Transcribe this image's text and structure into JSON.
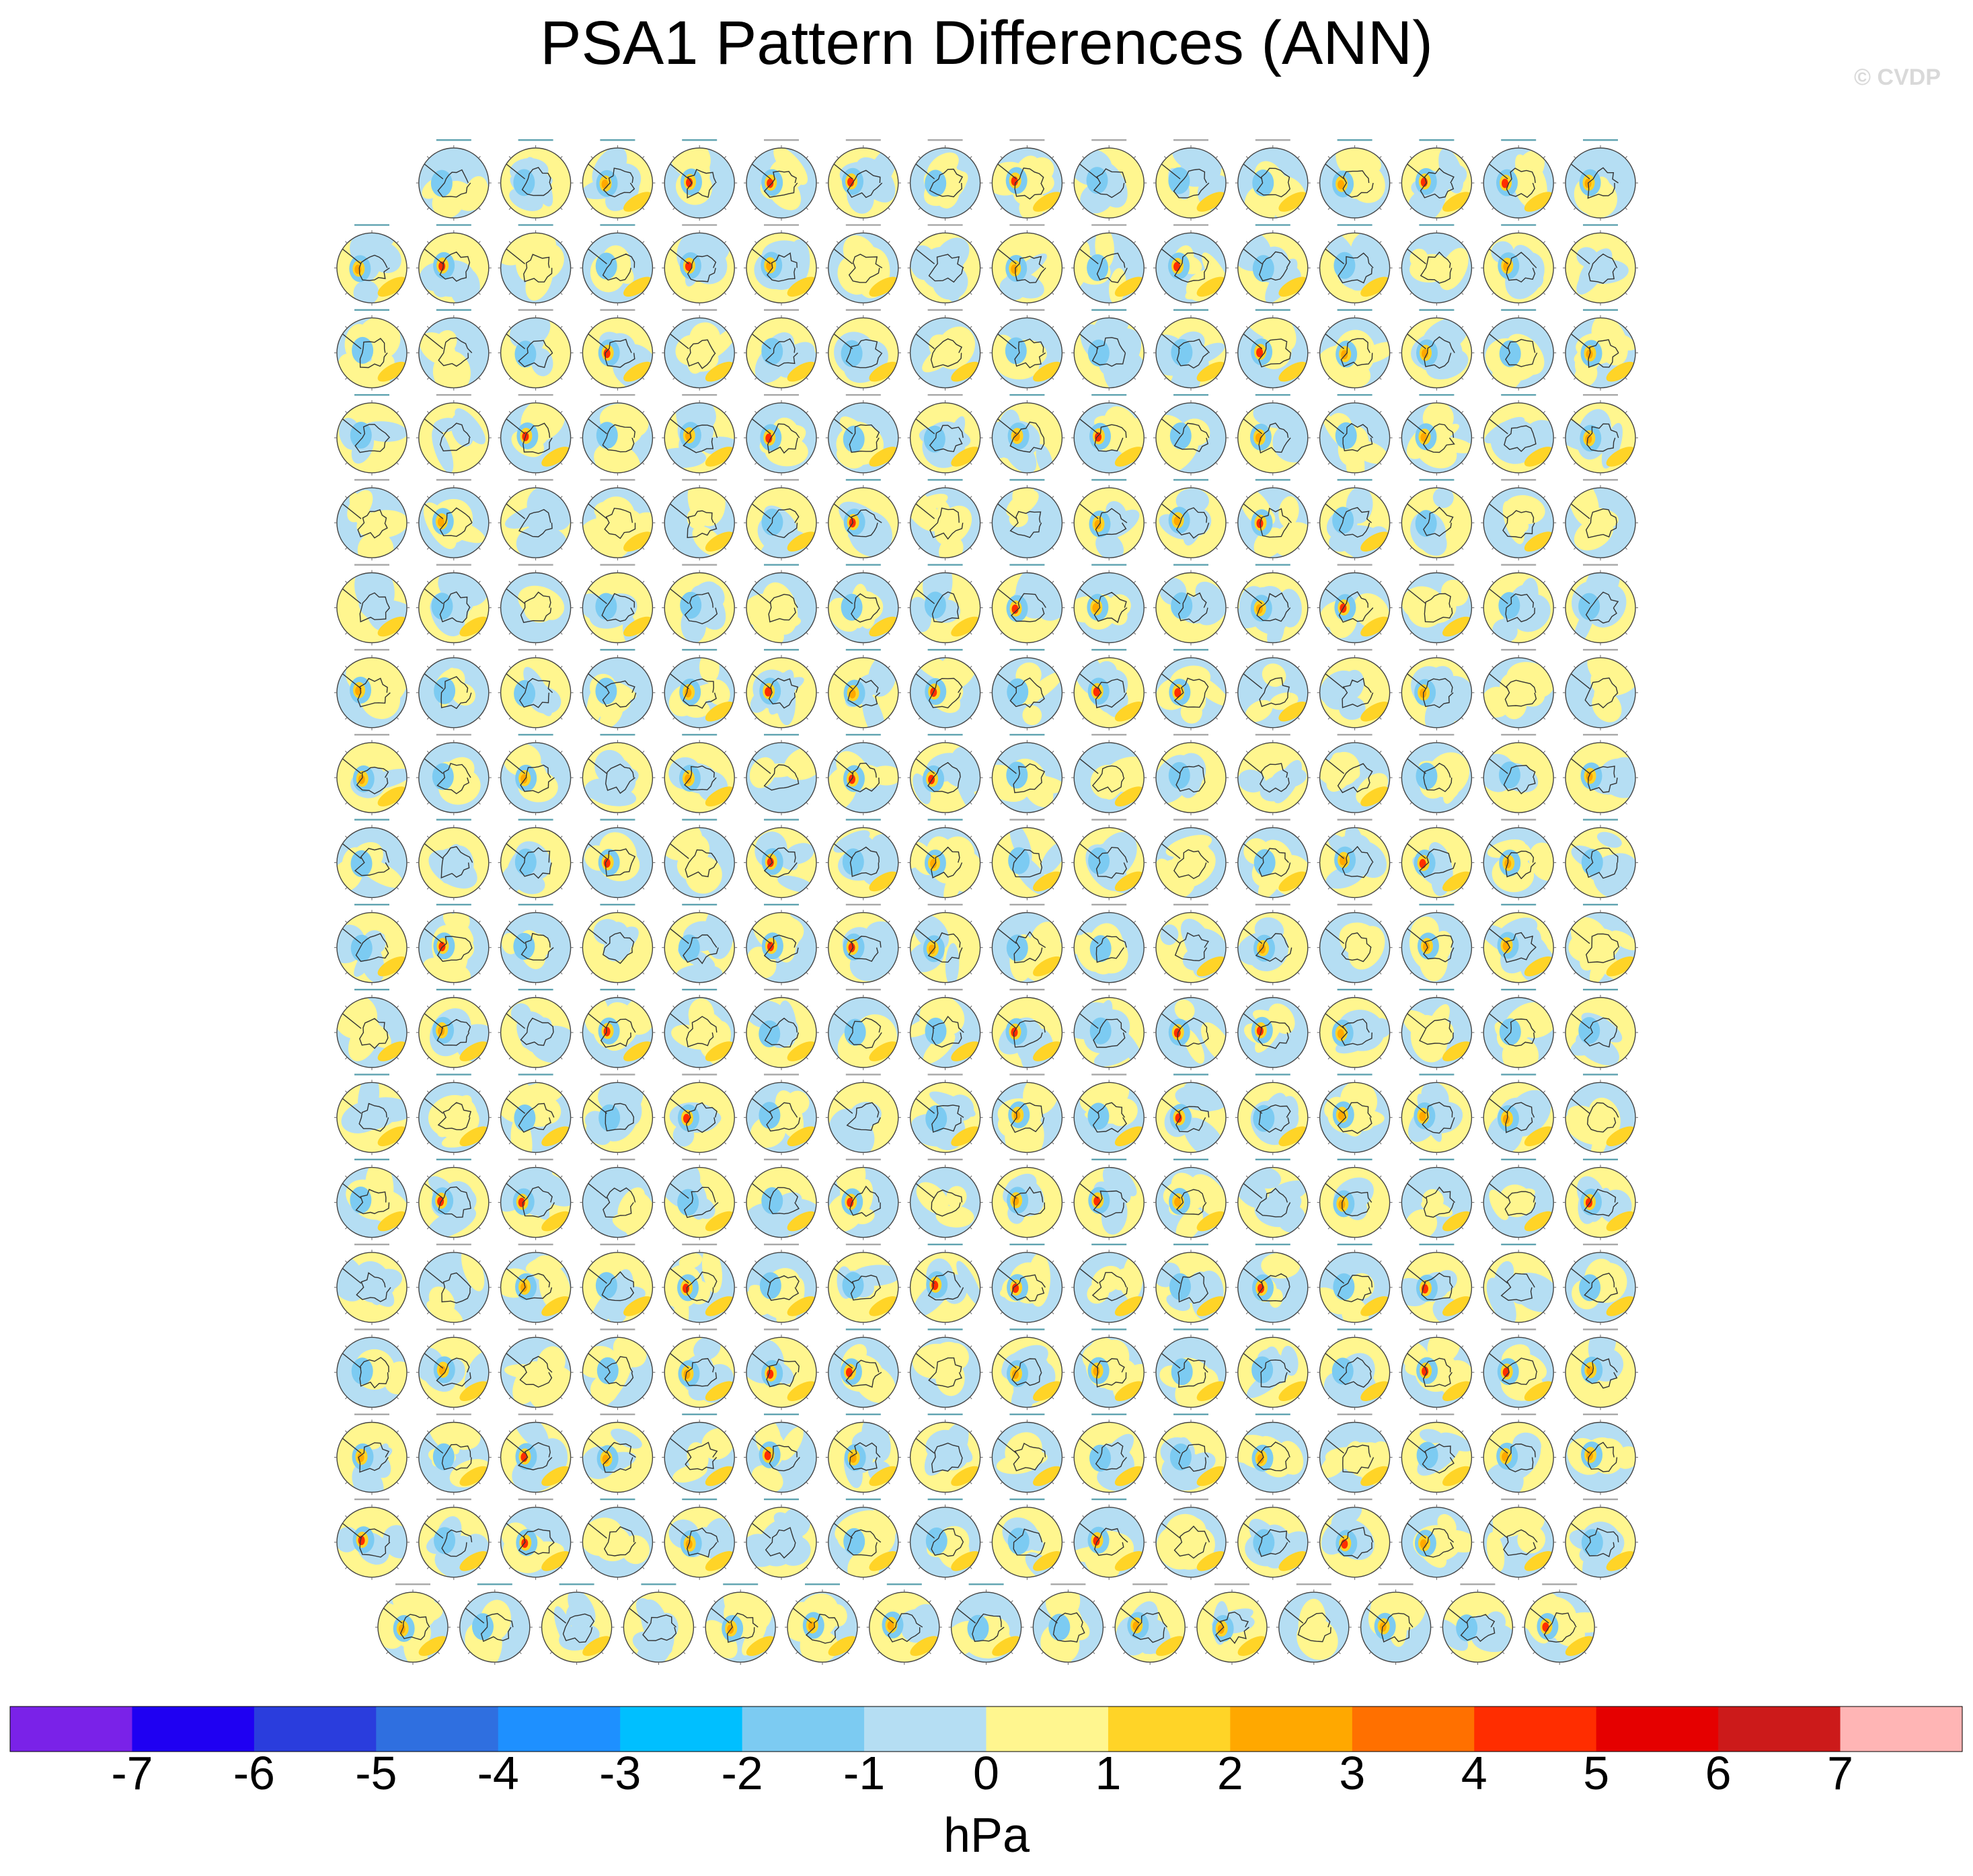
{
  "title": "PSA1 Pattern Differences (ANN)",
  "watermark": "© CVDP",
  "chart_data": {
    "type": "heatmap",
    "description_kind": "panel grid of polar-stereographic maps",
    "variable": "PSA1 pattern differences",
    "season": "ANN",
    "panel_rows": [
      15,
      16,
      16,
      16,
      16,
      16,
      16,
      16,
      16,
      16,
      16,
      16,
      16,
      16,
      16,
      16,
      16,
      15
    ],
    "panel_total": 286,
    "colorbar": {
      "units": "hPa",
      "tick_labels": [
        "-7",
        "-6",
        "-5",
        "-4",
        "-3",
        "-2",
        "-1",
        "0",
        "1",
        "2",
        "3",
        "4",
        "5",
        "6",
        "7"
      ],
      "levels": [
        -7,
        -6,
        -5,
        -4,
        -3,
        -2,
        -1,
        0,
        1,
        2,
        3,
        4,
        5,
        6,
        7
      ],
      "colors": [
        "#7a22e8",
        "#1f00f2",
        "#2a3ddd",
        "#2f6fe0",
        "#1e90ff",
        "#00bfff",
        "#7ccbf2",
        "#b5def3",
        "#fff68f",
        "#ffd427",
        "#ffa800",
        "#ff7000",
        "#ff2d00",
        "#e50000",
        "#cc1a1a",
        "#ffb5b5"
      ]
    }
  }
}
